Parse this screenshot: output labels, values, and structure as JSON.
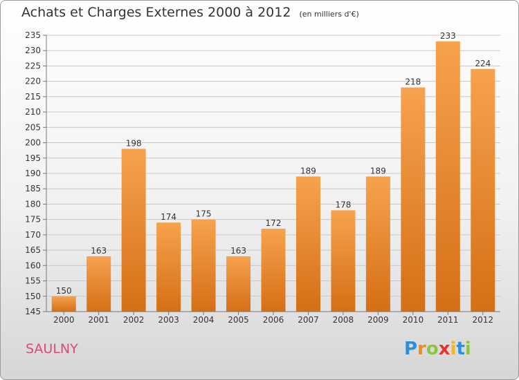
{
  "title": "Achats et Charges Externes 2000 à 2012",
  "unit": "(en milliers d'€)",
  "commune": "SAULNY",
  "logo": {
    "letters": [
      "P",
      "r",
      "o",
      "x",
      "i",
      "t",
      "i"
    ],
    "colors": [
      "#2d8fd5",
      "#f18b1d",
      "#8cc63f",
      "#e5332a",
      "#f7b617",
      "#2d8fd5",
      "#8cc63f"
    ]
  },
  "colors": {
    "bar_light": "#f7a24e",
    "bar_dark": "#d56f16",
    "accent": "#d84a7a"
  },
  "chart_data": {
    "type": "bar",
    "categories": [
      "2000",
      "2001",
      "2002",
      "2003",
      "2004",
      "2005",
      "2006",
      "2007",
      "2008",
      "2009",
      "2010",
      "2011",
      "2012"
    ],
    "values": [
      150,
      163,
      198,
      174,
      175,
      163,
      172,
      189,
      178,
      189,
      218,
      233,
      224
    ],
    "value_labels": [
      "150",
      "163",
      "198",
      "174",
      "175",
      "163",
      "172",
      "189",
      "178",
      "189",
      "218",
      "233",
      "224"
    ],
    "ylim": [
      145,
      235
    ],
    "yticks": [
      145,
      150,
      155,
      160,
      165,
      170,
      175,
      180,
      185,
      190,
      195,
      200,
      205,
      210,
      215,
      220,
      225,
      230,
      235
    ],
    "grid": true
  }
}
